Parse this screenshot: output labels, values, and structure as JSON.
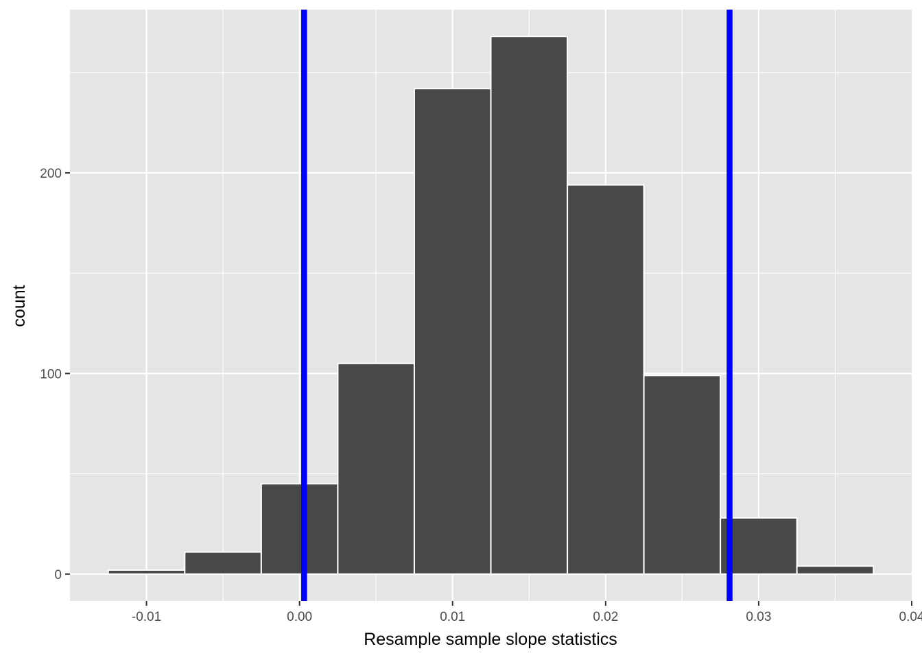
{
  "chart_data": {
    "type": "bar",
    "subtype": "histogram",
    "title": "",
    "xlabel": "Resample sample slope statistics",
    "ylabel": "count",
    "bin_width": 0.005,
    "bins": [
      {
        "x_min": -0.0125,
        "x_max": -0.0075,
        "count": 2
      },
      {
        "x_min": -0.0075,
        "x_max": -0.0025,
        "count": 11
      },
      {
        "x_min": -0.0025,
        "x_max": 0.0025,
        "count": 45
      },
      {
        "x_min": 0.0025,
        "x_max": 0.0075,
        "count": 105
      },
      {
        "x_min": 0.0075,
        "x_max": 0.0125,
        "count": 242
      },
      {
        "x_min": 0.0125,
        "x_max": 0.0175,
        "count": 268
      },
      {
        "x_min": 0.0175,
        "x_max": 0.0225,
        "count": 194
      },
      {
        "x_min": 0.0225,
        "x_max": 0.0275,
        "count": 99
      },
      {
        "x_min": 0.0275,
        "x_max": 0.0325,
        "count": 28
      },
      {
        "x_min": 0.0325,
        "x_max": 0.0375,
        "count": 4
      }
    ],
    "vertical_lines": [
      {
        "x": 0.0003,
        "color": "#0000ff"
      },
      {
        "x": 0.0281,
        "color": "#0000ff"
      }
    ],
    "xlim": [
      -0.015,
      0.04
    ],
    "ylim": [
      -13.4,
      281.4
    ],
    "x_ticks": [
      {
        "value": -0.01,
        "label": "-0.01"
      },
      {
        "value": 0.0,
        "label": "0.00"
      },
      {
        "value": 0.01,
        "label": "0.01"
      },
      {
        "value": 0.02,
        "label": "0.02"
      },
      {
        "value": 0.03,
        "label": "0.03"
      },
      {
        "value": 0.04,
        "label": "0.04"
      }
    ],
    "y_ticks": [
      {
        "value": 0,
        "label": "0"
      },
      {
        "value": 100,
        "label": "100"
      },
      {
        "value": 200,
        "label": "200"
      }
    ],
    "grid": true,
    "legend": "none",
    "colors": {
      "panel_background": "#e5e5e5",
      "grid_line": "#ffffff",
      "bar_fill": "#484848",
      "bar_outline": "#ffffff",
      "tick_text": "#4d4d4d",
      "tick_mark": "#333333",
      "axis_title": "#000000"
    }
  }
}
